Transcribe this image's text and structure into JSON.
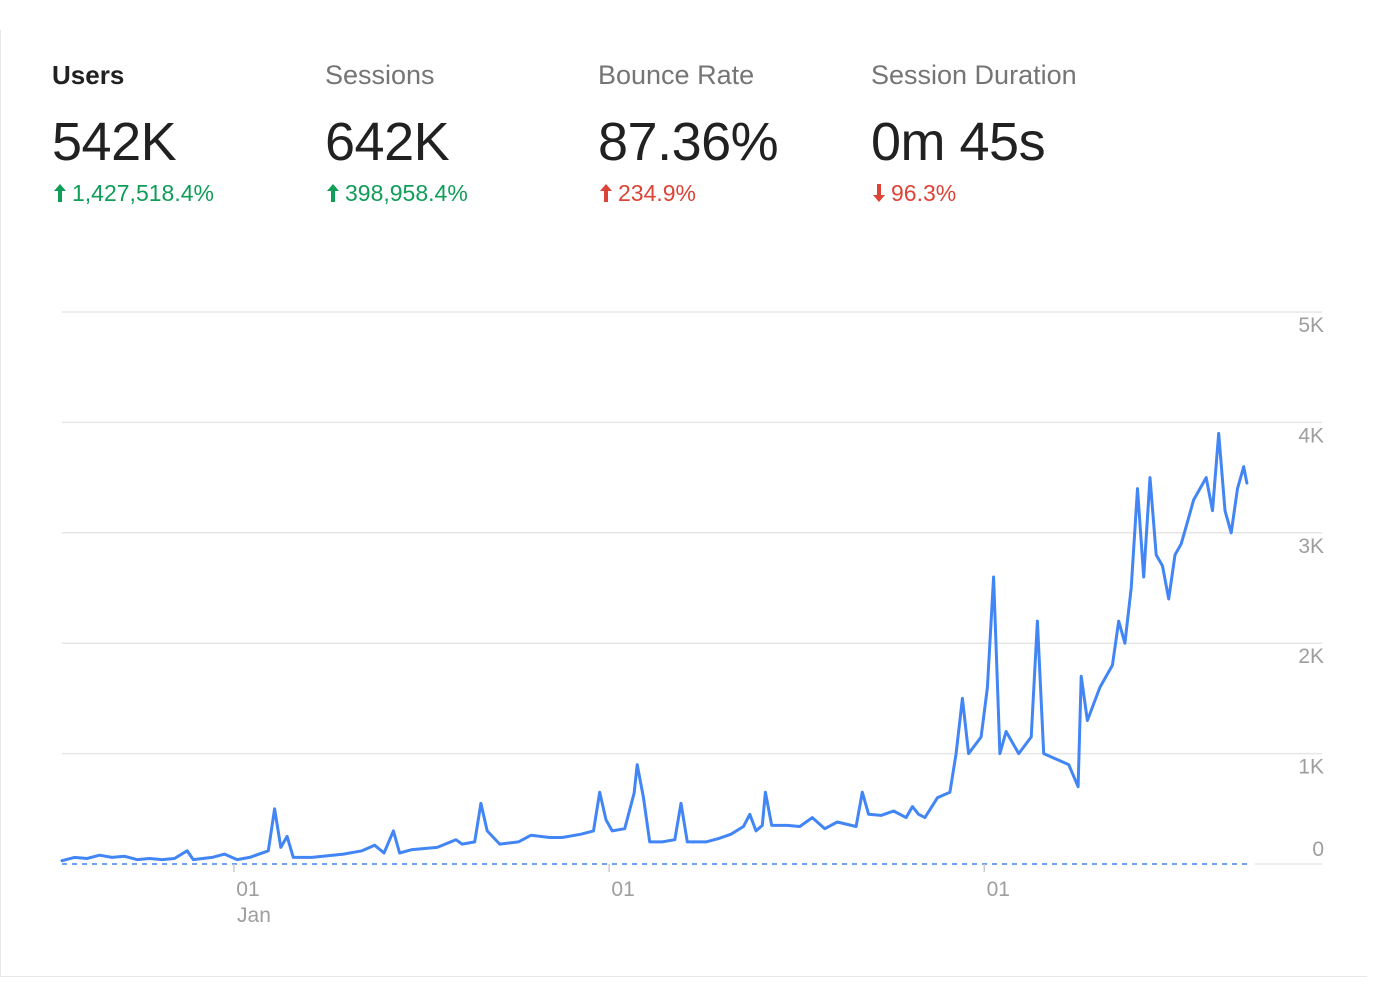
{
  "metrics": [
    {
      "label": "Users",
      "value": "542K",
      "change": "1,427,518.4%",
      "direction": "up",
      "color": "#0f9d58",
      "active": true
    },
    {
      "label": "Sessions",
      "value": "642K",
      "change": "398,958.4%",
      "direction": "up",
      "color": "#0f9d58",
      "active": false
    },
    {
      "label": "Bounce Rate",
      "value": "87.36%",
      "change": "234.9%",
      "direction": "up",
      "color": "#db4437",
      "active": false
    },
    {
      "label": "Session Duration",
      "value": "0m 45s",
      "change": "96.3%",
      "direction": "down",
      "color": "#db4437",
      "active": false
    }
  ],
  "chart_data": {
    "type": "line",
    "title": "",
    "xlabel": "",
    "ylabel": "",
    "ylim": [
      0,
      5000
    ],
    "y_ticks": [
      "0",
      "1K",
      "2K",
      "3K",
      "4K",
      "5K"
    ],
    "y_tick_values": [
      0,
      1000,
      2000,
      3000,
      4000,
      5000
    ],
    "x_ticks": [
      {
        "label": "01",
        "sub": "Jan",
        "day_index": 55
      },
      {
        "label": "01",
        "sub": "",
        "day_index": 175
      },
      {
        "label": "01",
        "sub": "",
        "day_index": 295
      }
    ],
    "x_range_days": 380,
    "grid": true,
    "baseline_dashed": true,
    "line_color": "#4285f4",
    "series": [
      {
        "values": [
          [
            0,
            30
          ],
          [
            4,
            60
          ],
          [
            8,
            50
          ],
          [
            12,
            80
          ],
          [
            16,
            60
          ],
          [
            20,
            70
          ],
          [
            24,
            40
          ],
          [
            28,
            50
          ],
          [
            32,
            40
          ],
          [
            36,
            50
          ],
          [
            40,
            120
          ],
          [
            42,
            40
          ],
          [
            48,
            60
          ],
          [
            52,
            90
          ],
          [
            56,
            40
          ],
          [
            60,
            60
          ],
          [
            66,
            120
          ],
          [
            68,
            500
          ],
          [
            70,
            150
          ],
          [
            72,
            250
          ],
          [
            74,
            60
          ],
          [
            80,
            60
          ],
          [
            90,
            90
          ],
          [
            96,
            120
          ],
          [
            100,
            170
          ],
          [
            103,
            100
          ],
          [
            106,
            300
          ],
          [
            108,
            100
          ],
          [
            112,
            130
          ],
          [
            120,
            150
          ],
          [
            126,
            220
          ],
          [
            128,
            180
          ],
          [
            132,
            200
          ],
          [
            134,
            550
          ],
          [
            136,
            300
          ],
          [
            140,
            180
          ],
          [
            146,
            200
          ],
          [
            150,
            260
          ],
          [
            156,
            240
          ],
          [
            160,
            240
          ],
          [
            166,
            270
          ],
          [
            170,
            300
          ],
          [
            172,
            650
          ],
          [
            174,
            400
          ],
          [
            176,
            300
          ],
          [
            180,
            320
          ],
          [
            183,
            640
          ],
          [
            184,
            900
          ],
          [
            186,
            600
          ],
          [
            188,
            200
          ],
          [
            192,
            200
          ],
          [
            196,
            220
          ],
          [
            198,
            550
          ],
          [
            200,
            200
          ],
          [
            206,
            200
          ],
          [
            210,
            230
          ],
          [
            214,
            270
          ],
          [
            218,
            340
          ],
          [
            220,
            450
          ],
          [
            222,
            300
          ],
          [
            224,
            350
          ],
          [
            225,
            650
          ],
          [
            227,
            350
          ],
          [
            232,
            350
          ],
          [
            236,
            340
          ],
          [
            240,
            420
          ],
          [
            244,
            320
          ],
          [
            248,
            380
          ],
          [
            254,
            340
          ],
          [
            256,
            650
          ],
          [
            258,
            450
          ],
          [
            262,
            440
          ],
          [
            266,
            480
          ],
          [
            270,
            420
          ],
          [
            272,
            520
          ],
          [
            274,
            450
          ],
          [
            276,
            420
          ],
          [
            280,
            600
          ],
          [
            284,
            650
          ],
          [
            286,
            1000
          ],
          [
            288,
            1500
          ],
          [
            290,
            1000
          ],
          [
            294,
            1150
          ],
          [
            296,
            1600
          ],
          [
            298,
            2600
          ],
          [
            300,
            1000
          ],
          [
            302,
            1200
          ],
          [
            306,
            1000
          ],
          [
            310,
            1150
          ],
          [
            312,
            2200
          ],
          [
            314,
            1000
          ],
          [
            318,
            950
          ],
          [
            322,
            900
          ],
          [
            325,
            700
          ],
          [
            326,
            1700
          ],
          [
            328,
            1300
          ],
          [
            332,
            1600
          ],
          [
            336,
            1800
          ],
          [
            338,
            2200
          ],
          [
            340,
            2000
          ],
          [
            342,
            2500
          ],
          [
            344,
            3400
          ],
          [
            346,
            2600
          ],
          [
            348,
            3500
          ],
          [
            350,
            2800
          ],
          [
            352,
            2700
          ],
          [
            354,
            2400
          ],
          [
            356,
            2800
          ],
          [
            358,
            2900
          ],
          [
            360,
            3100
          ],
          [
            362,
            3300
          ],
          [
            364,
            3400
          ],
          [
            366,
            3500
          ],
          [
            368,
            3200
          ],
          [
            370,
            3900
          ],
          [
            372,
            3200
          ],
          [
            374,
            3000
          ],
          [
            376,
            3400
          ],
          [
            378,
            3600
          ],
          [
            379,
            3450
          ]
        ]
      }
    ]
  }
}
